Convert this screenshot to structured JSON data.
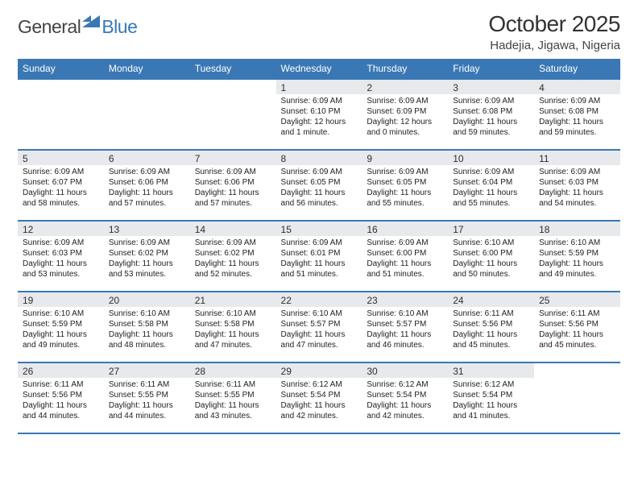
{
  "brand": {
    "part1": "General",
    "part2": "Blue"
  },
  "title": "October 2025",
  "location": "Hadejia, Jigawa, Nigeria",
  "colors": {
    "brand_blue": "#3a78b5",
    "header_gray": "#e7e9ec",
    "background": "#ffffff",
    "text": "#222222"
  },
  "weekdays": [
    "Sunday",
    "Monday",
    "Tuesday",
    "Wednesday",
    "Thursday",
    "Friday",
    "Saturday"
  ],
  "weeks": [
    [
      null,
      null,
      null,
      {
        "n": "1",
        "sunrise": "6:09 AM",
        "sunset": "6:10 PM",
        "daylight": "12 hours and 1 minute."
      },
      {
        "n": "2",
        "sunrise": "6:09 AM",
        "sunset": "6:09 PM",
        "daylight": "12 hours and 0 minutes."
      },
      {
        "n": "3",
        "sunrise": "6:09 AM",
        "sunset": "6:08 PM",
        "daylight": "11 hours and 59 minutes."
      },
      {
        "n": "4",
        "sunrise": "6:09 AM",
        "sunset": "6:08 PM",
        "daylight": "11 hours and 59 minutes."
      }
    ],
    [
      {
        "n": "5",
        "sunrise": "6:09 AM",
        "sunset": "6:07 PM",
        "daylight": "11 hours and 58 minutes."
      },
      {
        "n": "6",
        "sunrise": "6:09 AM",
        "sunset": "6:06 PM",
        "daylight": "11 hours and 57 minutes."
      },
      {
        "n": "7",
        "sunrise": "6:09 AM",
        "sunset": "6:06 PM",
        "daylight": "11 hours and 57 minutes."
      },
      {
        "n": "8",
        "sunrise": "6:09 AM",
        "sunset": "6:05 PM",
        "daylight": "11 hours and 56 minutes."
      },
      {
        "n": "9",
        "sunrise": "6:09 AM",
        "sunset": "6:05 PM",
        "daylight": "11 hours and 55 minutes."
      },
      {
        "n": "10",
        "sunrise": "6:09 AM",
        "sunset": "6:04 PM",
        "daylight": "11 hours and 55 minutes."
      },
      {
        "n": "11",
        "sunrise": "6:09 AM",
        "sunset": "6:03 PM",
        "daylight": "11 hours and 54 minutes."
      }
    ],
    [
      {
        "n": "12",
        "sunrise": "6:09 AM",
        "sunset": "6:03 PM",
        "daylight": "11 hours and 53 minutes."
      },
      {
        "n": "13",
        "sunrise": "6:09 AM",
        "sunset": "6:02 PM",
        "daylight": "11 hours and 53 minutes."
      },
      {
        "n": "14",
        "sunrise": "6:09 AM",
        "sunset": "6:02 PM",
        "daylight": "11 hours and 52 minutes."
      },
      {
        "n": "15",
        "sunrise": "6:09 AM",
        "sunset": "6:01 PM",
        "daylight": "11 hours and 51 minutes."
      },
      {
        "n": "16",
        "sunrise": "6:09 AM",
        "sunset": "6:00 PM",
        "daylight": "11 hours and 51 minutes."
      },
      {
        "n": "17",
        "sunrise": "6:10 AM",
        "sunset": "6:00 PM",
        "daylight": "11 hours and 50 minutes."
      },
      {
        "n": "18",
        "sunrise": "6:10 AM",
        "sunset": "5:59 PM",
        "daylight": "11 hours and 49 minutes."
      }
    ],
    [
      {
        "n": "19",
        "sunrise": "6:10 AM",
        "sunset": "5:59 PM",
        "daylight": "11 hours and 49 minutes."
      },
      {
        "n": "20",
        "sunrise": "6:10 AM",
        "sunset": "5:58 PM",
        "daylight": "11 hours and 48 minutes."
      },
      {
        "n": "21",
        "sunrise": "6:10 AM",
        "sunset": "5:58 PM",
        "daylight": "11 hours and 47 minutes."
      },
      {
        "n": "22",
        "sunrise": "6:10 AM",
        "sunset": "5:57 PM",
        "daylight": "11 hours and 47 minutes."
      },
      {
        "n": "23",
        "sunrise": "6:10 AM",
        "sunset": "5:57 PM",
        "daylight": "11 hours and 46 minutes."
      },
      {
        "n": "24",
        "sunrise": "6:11 AM",
        "sunset": "5:56 PM",
        "daylight": "11 hours and 45 minutes."
      },
      {
        "n": "25",
        "sunrise": "6:11 AM",
        "sunset": "5:56 PM",
        "daylight": "11 hours and 45 minutes."
      }
    ],
    [
      {
        "n": "26",
        "sunrise": "6:11 AM",
        "sunset": "5:56 PM",
        "daylight": "11 hours and 44 minutes."
      },
      {
        "n": "27",
        "sunrise": "6:11 AM",
        "sunset": "5:55 PM",
        "daylight": "11 hours and 44 minutes."
      },
      {
        "n": "28",
        "sunrise": "6:11 AM",
        "sunset": "5:55 PM",
        "daylight": "11 hours and 43 minutes."
      },
      {
        "n": "29",
        "sunrise": "6:12 AM",
        "sunset": "5:54 PM",
        "daylight": "11 hours and 42 minutes."
      },
      {
        "n": "30",
        "sunrise": "6:12 AM",
        "sunset": "5:54 PM",
        "daylight": "11 hours and 42 minutes."
      },
      {
        "n": "31",
        "sunrise": "6:12 AM",
        "sunset": "5:54 PM",
        "daylight": "11 hours and 41 minutes."
      },
      null
    ]
  ],
  "labels": {
    "sunrise": "Sunrise: ",
    "sunset": "Sunset: ",
    "daylight": "Daylight: "
  }
}
